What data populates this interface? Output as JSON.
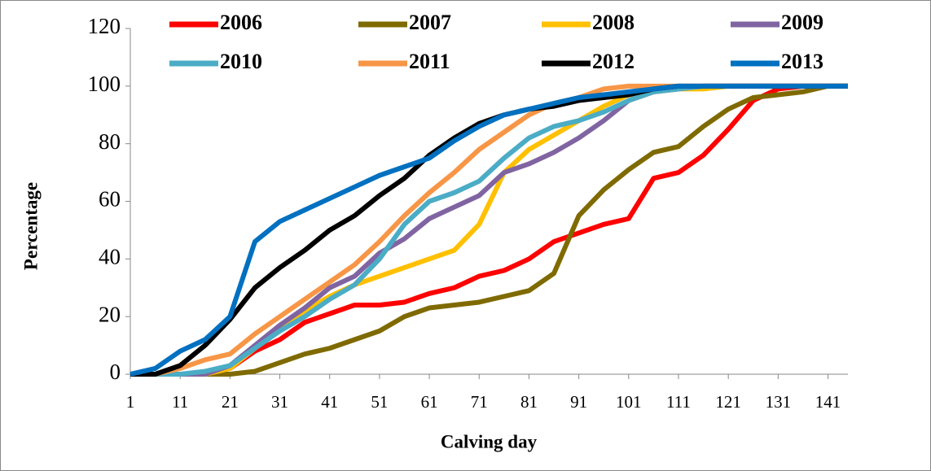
{
  "chart_data": {
    "type": "line",
    "x_label": "Calving day",
    "y_label": "Percentage",
    "x": [
      1,
      6,
      11,
      16,
      21,
      26,
      31,
      36,
      41,
      46,
      51,
      56,
      61,
      66,
      71,
      76,
      81,
      86,
      91,
      96,
      101,
      106,
      111,
      116,
      121,
      126,
      131,
      136,
      141,
      145
    ],
    "xlim": [
      1,
      145
    ],
    "xticks": [
      1,
      11,
      21,
      31,
      41,
      51,
      61,
      71,
      81,
      91,
      101,
      111,
      121,
      131,
      141
    ],
    "ylim": [
      0,
      120
    ],
    "yticks": [
      0,
      20,
      40,
      60,
      80,
      100,
      120
    ],
    "grid": false,
    "legend": "top",
    "series": [
      {
        "name": "2006",
        "color": "#ff0000",
        "values": [
          0,
          0,
          0,
          0,
          2,
          8,
          12,
          18,
          21,
          24,
          24,
          25,
          28,
          30,
          34,
          36,
          40,
          46,
          49,
          52,
          54,
          68,
          70,
          76,
          85,
          95,
          99,
          100,
          100,
          100
        ]
      },
      {
        "name": "2007",
        "color": "#7f6a00",
        "values": [
          0,
          0,
          0,
          0,
          0,
          1,
          4,
          7,
          9,
          12,
          15,
          20,
          23,
          24,
          25,
          27,
          29,
          35,
          55,
          64,
          71,
          77,
          79,
          86,
          92,
          96,
          97,
          98,
          100,
          100
        ]
      },
      {
        "name": "2008",
        "color": "#ffc000",
        "values": [
          0,
          0,
          0,
          0,
          2,
          9,
          16,
          22,
          27,
          31,
          34,
          37,
          40,
          43,
          52,
          70,
          78,
          83,
          88,
          93,
          97,
          98,
          99,
          99,
          100,
          100,
          100,
          100,
          100,
          100
        ]
      },
      {
        "name": "2009",
        "color": "#8064a2",
        "values": [
          0,
          0,
          0,
          0,
          3,
          10,
          17,
          23,
          30,
          34,
          42,
          47,
          54,
          58,
          62,
          70,
          73,
          77,
          82,
          88,
          95,
          98,
          99,
          100,
          100,
          100,
          100,
          100,
          100,
          100
        ]
      },
      {
        "name": "2010",
        "color": "#4bacc6",
        "values": [
          0,
          0,
          0,
          1,
          3,
          9,
          15,
          20,
          26,
          31,
          40,
          52,
          60,
          63,
          67,
          75,
          82,
          86,
          88,
          91,
          95,
          98,
          99,
          100,
          100,
          100,
          100,
          100,
          100,
          100
        ]
      },
      {
        "name": "2011",
        "color": "#f79646",
        "values": [
          0,
          0,
          2,
          5,
          7,
          14,
          20,
          26,
          32,
          38,
          46,
          55,
          63,
          70,
          78,
          84,
          90,
          94,
          96,
          99,
          100,
          100,
          100,
          100,
          100,
          100,
          100,
          100,
          100,
          100
        ]
      },
      {
        "name": "2012",
        "color": "#000000",
        "values": [
          0,
          0,
          3,
          10,
          19,
          30,
          37,
          43,
          50,
          55,
          62,
          68,
          76,
          82,
          87,
          90,
          92,
          93,
          95,
          96,
          97,
          99,
          100,
          100,
          100,
          100,
          100,
          100,
          100,
          100
        ]
      },
      {
        "name": "2013",
        "color": "#0070c0",
        "values": [
          0,
          2,
          8,
          12,
          20,
          46,
          53,
          57,
          61,
          65,
          69,
          72,
          75,
          81,
          86,
          90,
          92,
          94,
          96,
          97,
          98,
          99,
          100,
          100,
          100,
          100,
          100,
          100,
          100,
          100
        ]
      }
    ]
  }
}
